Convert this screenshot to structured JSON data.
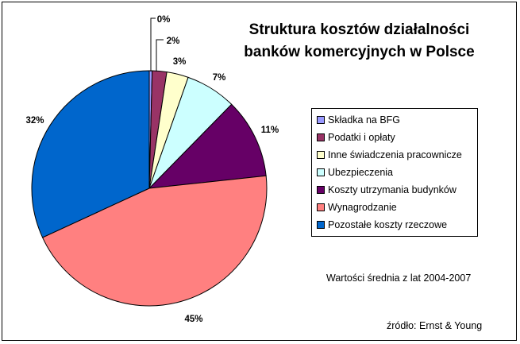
{
  "chart_data": {
    "type": "pie",
    "title_line1": "Struktura kosztów działalności",
    "title_line2": "banków komercyjnych w Polsce",
    "categories": [
      "Składka na BFG",
      "Podatki i opłaty",
      "Inne świadczenia pracownicze",
      "Ubezpieczenia",
      "Koszty utrzymania budynków",
      "Wynagrodzanie",
      "Pozostałe koszty rzeczowe"
    ],
    "values": [
      0.4,
      2,
      3,
      7,
      11,
      45,
      32
    ],
    "labels": [
      "0%",
      "2%",
      "3%",
      "7%",
      "11%",
      "45%",
      "32%"
    ],
    "colors": [
      "#9999ff",
      "#993366",
      "#ffffcc",
      "#ccffff",
      "#660066",
      "#ff8080",
      "#0066cc"
    ],
    "legend_position": "right",
    "note": "Wartości średnia z lat 2004-2007",
    "source": "źródło: Ernst & Young"
  }
}
